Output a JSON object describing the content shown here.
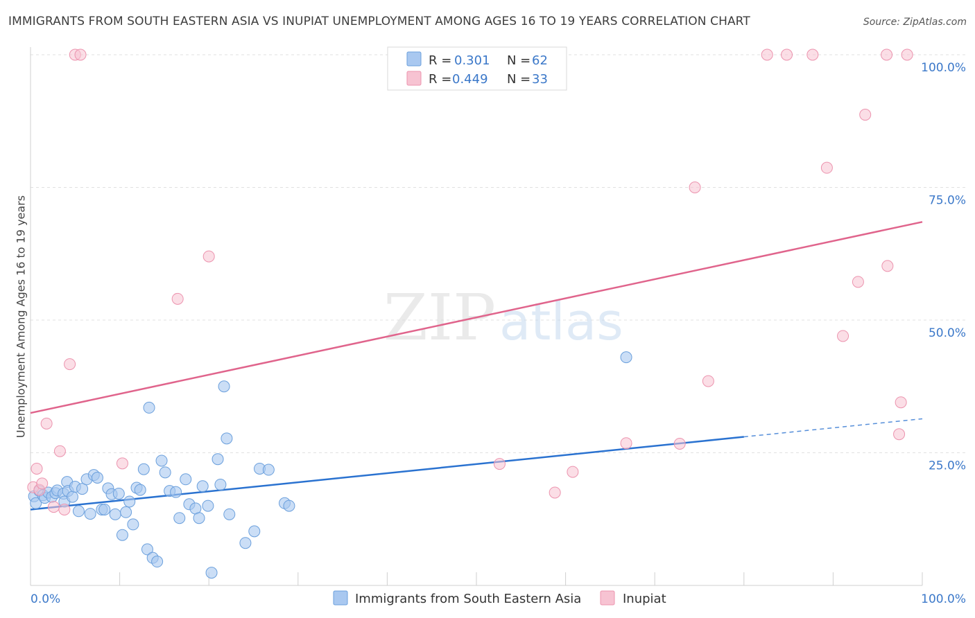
{
  "header": {
    "title": "IMMIGRANTS FROM SOUTH EASTERN ASIA VS INUPIAT UNEMPLOYMENT AMONG AGES 16 TO 19 YEARS CORRELATION CHART",
    "source": "Source: ZipAtlas.com"
  },
  "watermark": {
    "zip": "ZIP",
    "atlas": "atlas"
  },
  "colors": {
    "blue_fill": "#a9c8f0",
    "blue_stroke": "#6a9fdc",
    "blue_line": "#2a72d0",
    "pink_fill": "#f7c3d2",
    "pink_stroke": "#ec93ae",
    "pink_line": "#e0648c",
    "tick_label": "#3b78c9",
    "grid": "#e0e0e0"
  },
  "legend_top": [
    {
      "r_label": "R =",
      "r_value": "0.301",
      "n_label": "N =",
      "n_value": "62"
    },
    {
      "r_label": "R =",
      "r_value": "0.449",
      "n_label": "N =",
      "n_value": "33"
    }
  ],
  "chart_data": {
    "type": "scatter",
    "title": "IMMIGRANTS FROM SOUTH EASTERN ASIA VS INUPIAT UNEMPLOYMENT AMONG AGES 16 TO 19 YEARS CORRELATION CHART",
    "xlabel": "",
    "ylabel": "Unemployment Among Ages 16 to 19 years",
    "xlim": [
      0,
      100
    ],
    "ylim": [
      0,
      100
    ],
    "x_tick_labels": [
      {
        "value": 0,
        "label": "0.0%"
      },
      {
        "value": 100,
        "label": "100.0%"
      }
    ],
    "y_tick_labels": [
      {
        "value": 25,
        "label": "25.0%"
      },
      {
        "value": 50,
        "label": "50.0%"
      },
      {
        "value": 75,
        "label": "75.0%"
      },
      {
        "value": 100,
        "label": "100.0%"
      }
    ],
    "grid": true,
    "legend_position": "bottom",
    "series": [
      {
        "name": "Immigrants from South Eastern Asia",
        "color": "#a9c8f0",
        "regression": {
          "x": [
            0,
            80
          ],
          "y": [
            14.3,
            28.0
          ],
          "dashed_to": [
            100,
            31.4
          ]
        },
        "points": [
          [
            0.4,
            16.8
          ],
          [
            0.6,
            15.5
          ],
          [
            1.0,
            17.8
          ],
          [
            1.4,
            17.0
          ],
          [
            1.6,
            16.5
          ],
          [
            2.0,
            17.5
          ],
          [
            2.4,
            16.7
          ],
          [
            2.8,
            17.4
          ],
          [
            3.0,
            17.9
          ],
          [
            3.7,
            17.3
          ],
          [
            3.8,
            15.8
          ],
          [
            4.1,
            19.5
          ],
          [
            4.2,
            17.8
          ],
          [
            4.7,
            16.7
          ],
          [
            5.0,
            18.6
          ],
          [
            5.4,
            14.0
          ],
          [
            5.8,
            18.2
          ],
          [
            6.3,
            20.0
          ],
          [
            6.7,
            13.5
          ],
          [
            7.1,
            20.8
          ],
          [
            7.5,
            20.3
          ],
          [
            8.0,
            14.3
          ],
          [
            8.3,
            14.3
          ],
          [
            8.7,
            18.3
          ],
          [
            9.1,
            17.2
          ],
          [
            9.5,
            13.4
          ],
          [
            9.9,
            17.3
          ],
          [
            10.3,
            9.5
          ],
          [
            10.7,
            13.8
          ],
          [
            11.1,
            15.8
          ],
          [
            11.5,
            11.5
          ],
          [
            11.9,
            18.4
          ],
          [
            12.3,
            18.0
          ],
          [
            12.7,
            21.9
          ],
          [
            13.1,
            6.8
          ],
          [
            13.3,
            33.5
          ],
          [
            13.7,
            5.2
          ],
          [
            14.2,
            4.5
          ],
          [
            14.7,
            23.5
          ],
          [
            15.1,
            21.3
          ],
          [
            15.6,
            17.8
          ],
          [
            16.3,
            17.6
          ],
          [
            16.7,
            12.7
          ],
          [
            17.4,
            20.0
          ],
          [
            17.8,
            15.3
          ],
          [
            18.5,
            14.5
          ],
          [
            18.9,
            12.7
          ],
          [
            19.3,
            18.7
          ],
          [
            19.9,
            15.0
          ],
          [
            20.3,
            2.4
          ],
          [
            21.0,
            23.8
          ],
          [
            21.3,
            19.0
          ],
          [
            21.7,
            37.5
          ],
          [
            22.0,
            27.7
          ],
          [
            22.3,
            13.4
          ],
          [
            24.1,
            8.0
          ],
          [
            25.1,
            10.2
          ],
          [
            25.7,
            22.0
          ],
          [
            26.7,
            21.8
          ],
          [
            28.5,
            15.5
          ],
          [
            29.0,
            15.0
          ],
          [
            66.8,
            43.0
          ]
        ]
      },
      {
        "name": "Inupiat",
        "color": "#f7c3d2",
        "regression": {
          "x": [
            0,
            100
          ],
          "y": [
            32.5,
            68.5
          ]
        },
        "points": [
          [
            0.3,
            18.5
          ],
          [
            0.7,
            22.0
          ],
          [
            1.0,
            18.0
          ],
          [
            1.3,
            19.2
          ],
          [
            1.8,
            30.5
          ],
          [
            2.6,
            14.8
          ],
          [
            3.3,
            25.3
          ],
          [
            3.8,
            14.3
          ],
          [
            4.4,
            41.7
          ],
          [
            5.0,
            100.0
          ],
          [
            5.6,
            100.0
          ],
          [
            10.3,
            23.0
          ],
          [
            16.5,
            54.0
          ],
          [
            20.0,
            62.0
          ],
          [
            52.6,
            22.9
          ],
          [
            58.8,
            17.5
          ],
          [
            60.8,
            21.4
          ],
          [
            66.8,
            26.8
          ],
          [
            72.8,
            26.7
          ],
          [
            74.5,
            75.0
          ],
          [
            76.0,
            38.5
          ],
          [
            82.6,
            100.0
          ],
          [
            84.8,
            100.0
          ],
          [
            87.7,
            100.0
          ],
          [
            89.3,
            78.7
          ],
          [
            91.1,
            47.0
          ],
          [
            92.8,
            57.2
          ],
          [
            93.6,
            88.7
          ],
          [
            96.0,
            100.0
          ],
          [
            96.1,
            60.2
          ],
          [
            97.4,
            28.5
          ],
          [
            97.6,
            34.5
          ],
          [
            98.3,
            100.0
          ]
        ]
      }
    ]
  }
}
